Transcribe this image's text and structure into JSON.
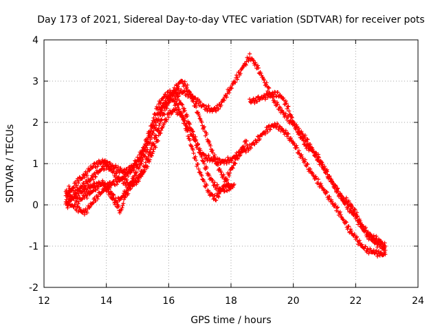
{
  "chart_data": {
    "type": "scatter",
    "title": "Day 173 of 2021, Sidereal Day-to-day VTEC variation (SDTVAR) for receiver pots",
    "xlabel": "GPS time / hours",
    "ylabel": "SDTVAR / TECUs",
    "xlim": [
      12,
      24
    ],
    "ylim": [
      -2,
      4
    ],
    "xticks": [
      "12",
      "14",
      "16",
      "18",
      "20",
      "22",
      "24"
    ],
    "yticks": [
      "-2",
      "-1",
      "0",
      "1",
      "2",
      "3",
      "4"
    ],
    "grid": true,
    "marker": "+",
    "series": [
      {
        "name": "trace-1",
        "color": "#ff0000",
        "x": [
          12.7,
          12.9,
          13.1,
          13.3,
          13.5,
          13.7,
          13.9,
          14.0,
          14.2,
          14.4,
          14.6,
          14.8,
          15.0,
          15.2,
          15.4,
          15.6,
          15.8,
          16.0,
          16.2,
          16.4,
          16.6,
          16.8,
          17.0,
          17.2,
          17.4,
          17.6,
          17.8,
          18.0,
          18.2,
          18.4,
          18.6,
          18.8,
          19.0,
          19.2,
          19.4,
          19.6,
          19.8,
          20.0,
          20.2,
          20.4,
          20.6,
          20.8,
          21.0,
          21.2,
          21.4,
          21.6,
          21.8,
          22.0,
          22.2,
          22.4,
          22.6,
          22.8,
          22.95
        ],
        "y": [
          0.2,
          0.4,
          0.6,
          0.7,
          0.9,
          1.0,
          1.05,
          1.0,
          0.95,
          0.85,
          0.8,
          0.9,
          1.1,
          1.4,
          1.8,
          2.3,
          2.6,
          2.7,
          2.75,
          2.75,
          2.7,
          2.6,
          2.45,
          2.35,
          2.3,
          2.35,
          2.6,
          2.85,
          3.1,
          3.35,
          3.6,
          3.4,
          3.1,
          2.8,
          2.5,
          2.3,
          2.1,
          1.95,
          1.8,
          1.6,
          1.35,
          1.1,
          0.85,
          0.6,
          0.35,
          0.1,
          -0.1,
          -0.3,
          -0.55,
          -0.75,
          -0.9,
          -1.0,
          -1.1
        ]
      },
      {
        "name": "trace-2",
        "color": "#ff0000",
        "x": [
          12.7,
          12.9,
          13.1,
          13.3,
          13.5,
          13.7,
          13.9,
          14.1,
          14.3,
          14.45,
          14.6,
          14.8,
          15.0,
          15.2,
          15.4,
          15.6,
          15.8,
          16.0,
          16.2,
          16.4,
          16.6,
          16.8,
          17.0,
          17.2,
          17.4,
          17.6,
          17.8,
          18.0,
          18.2,
          18.4,
          18.6,
          18.8,
          19.0,
          19.2,
          19.4,
          19.6,
          19.8,
          20.0,
          20.2,
          20.4,
          20.6,
          20.8,
          21.0,
          21.2,
          21.4,
          21.6,
          21.8,
          22.0,
          22.2,
          22.4,
          22.6,
          22.8,
          22.95
        ],
        "y": [
          0.05,
          0.15,
          0.3,
          0.35,
          0.45,
          0.5,
          0.5,
          0.4,
          0.1,
          -0.2,
          0.2,
          0.45,
          0.6,
          0.8,
          1.1,
          1.5,
          1.9,
          2.2,
          2.3,
          2.2,
          1.9,
          1.6,
          1.3,
          1.15,
          1.1,
          1.05,
          1.05,
          1.1,
          1.2,
          1.3,
          1.4,
          1.55,
          1.7,
          1.85,
          1.95,
          1.85,
          1.7,
          1.5,
          1.25,
          1.0,
          0.75,
          0.55,
          0.35,
          0.1,
          -0.1,
          -0.35,
          -0.6,
          -0.8,
          -1.0,
          -1.1,
          -1.15,
          -1.2,
          -1.2
        ]
      },
      {
        "name": "trace-3",
        "color": "#ff0000",
        "x": [
          12.7,
          12.9,
          13.1,
          13.3,
          13.5,
          13.7,
          13.9,
          14.1,
          14.3,
          14.5,
          14.7,
          14.9,
          15.1,
          15.3,
          15.5,
          15.7,
          15.9,
          16.1,
          16.3,
          16.5,
          16.7,
          16.9,
          17.1,
          17.3,
          17.5,
          17.7,
          17.9,
          18.1
        ],
        "y": [
          0.3,
          0.2,
          0.1,
          0.2,
          0.3,
          0.45,
          0.55,
          0.25,
          0.05,
          0.2,
          0.4,
          0.7,
          1.0,
          1.35,
          1.75,
          2.15,
          2.5,
          2.7,
          2.6,
          2.3,
          1.9,
          1.5,
          1.05,
          0.7,
          0.45,
          0.35,
          0.4,
          0.5
        ]
      },
      {
        "name": "trace-4",
        "color": "#ff0000",
        "x": [
          12.7,
          12.9,
          13.1,
          13.3,
          13.5,
          13.7,
          13.9,
          14.1,
          14.3,
          14.5,
          14.7,
          14.9,
          15.1,
          15.3,
          15.5,
          15.7,
          15.9,
          16.1,
          16.3,
          16.5,
          16.7,
          16.9,
          17.1,
          17.3,
          17.5,
          17.7,
          17.9,
          18.1,
          18.3,
          18.5
        ],
        "y": [
          0.0,
          0.0,
          -0.1,
          -0.2,
          0.0,
          0.2,
          0.35,
          0.5,
          0.55,
          0.65,
          0.75,
          0.9,
          1.15,
          1.5,
          1.9,
          2.3,
          2.5,
          2.55,
          2.4,
          2.0,
          1.5,
          1.0,
          0.6,
          0.3,
          0.15,
          0.35,
          0.7,
          1.0,
          1.3,
          1.55
        ]
      },
      {
        "name": "trace-5",
        "color": "#ff0000",
        "x": [
          12.8,
          13.0,
          13.2,
          13.4,
          13.6,
          13.8,
          14.0,
          14.2,
          14.4,
          14.6,
          14.8,
          15.0,
          15.2,
          15.4,
          15.6,
          15.8,
          16.0,
          16.2,
          16.4,
          16.6,
          16.8,
          17.0,
          17.2,
          17.4,
          17.6,
          17.8,
          18.0
        ],
        "y": [
          0.4,
          0.3,
          0.45,
          0.55,
          0.7,
          0.85,
          0.95,
          0.8,
          0.65,
          0.55,
          0.5,
          0.6,
          0.9,
          1.3,
          1.7,
          2.15,
          2.5,
          2.8,
          3.0,
          2.85,
          2.5,
          2.1,
          1.7,
          1.3,
          0.9,
          0.6,
          0.4
        ]
      },
      {
        "name": "trace-6",
        "color": "#ff0000",
        "x": [
          18.6,
          18.8,
          19.0,
          19.2,
          19.4,
          19.6,
          19.8,
          20.0,
          20.2,
          20.4,
          20.6,
          20.8,
          21.0,
          21.2,
          21.4,
          21.6,
          21.8,
          22.0,
          22.2,
          22.4,
          22.6,
          22.8,
          22.95
        ],
        "y": [
          2.5,
          2.55,
          2.6,
          2.65,
          2.7,
          2.65,
          2.4,
          2.0,
          1.7,
          1.45,
          1.3,
          1.15,
          0.9,
          0.6,
          0.35,
          0.15,
          0.05,
          -0.2,
          -0.5,
          -0.7,
          -0.8,
          -0.9,
          -1.0
        ]
      }
    ]
  }
}
